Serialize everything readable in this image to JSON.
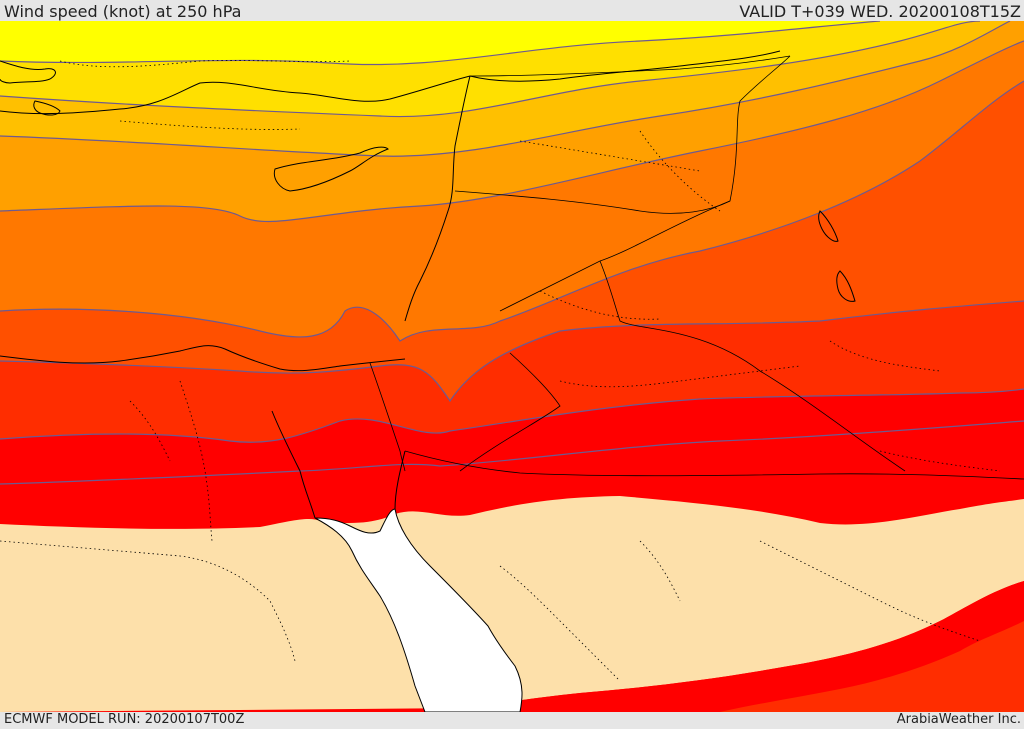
{
  "header": {
    "title": "Wind speed (knot) at 250 hPa",
    "valid": "VALID T+039 WED. 20200108T15Z"
  },
  "footer": {
    "model_run": "ECMWF MODEL RUN: 20200107T00Z",
    "credit": "ArabiaWeather Inc."
  },
  "colors": {
    "sea": "#ffffff",
    "land_below_threshold": "#fde0aa",
    "yellow": "#ffff00",
    "gold": "#ffe000",
    "amber": "#ffc000",
    "light_orange": "#ffa000",
    "orange": "#ff7800",
    "dark_orange": "#ff5000",
    "red_orange": "#ff2d00",
    "red": "#ff0000",
    "contour": "#6e5a90",
    "coast": "#000000"
  }
}
